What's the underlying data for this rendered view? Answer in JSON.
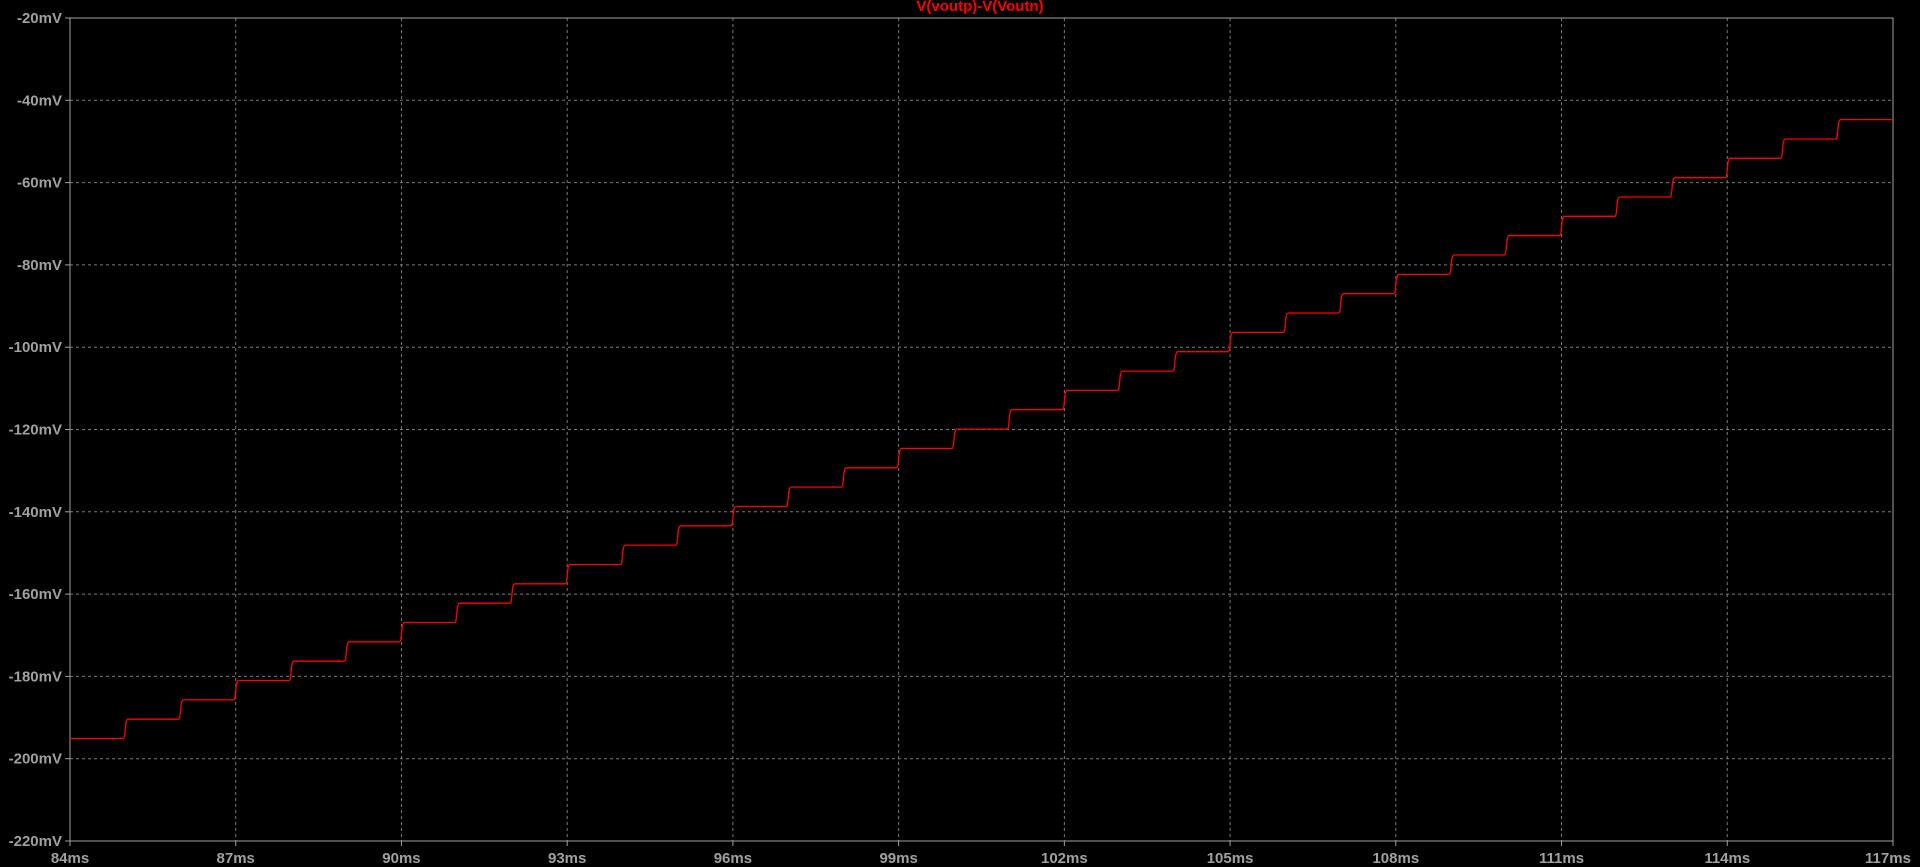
{
  "chart_data": {
    "type": "line",
    "title": "V(voutp)-V(Voutn)",
    "xlabel": "",
    "ylabel": "",
    "grid": true,
    "xlim": [
      84,
      117
    ],
    "ylim": [
      -220,
      -20
    ],
    "x_ticks": [
      "84ms",
      "87ms",
      "90ms",
      "93ms",
      "96ms",
      "99ms",
      "102ms",
      "105ms",
      "108ms",
      "111ms",
      "114ms",
      "117ms"
    ],
    "x_tick_values": [
      84,
      87,
      90,
      93,
      96,
      99,
      102,
      105,
      108,
      111,
      114,
      117
    ],
    "y_ticks": [
      "-20mV",
      "-40mV",
      "-60mV",
      "-80mV",
      "-100mV",
      "-120mV",
      "-140mV",
      "-160mV",
      "-180mV",
      "-200mV",
      "-220mV"
    ],
    "y_tick_values": [
      -20,
      -40,
      -60,
      -80,
      -100,
      -120,
      -140,
      -160,
      -180,
      -200,
      -220
    ],
    "x_unit": "ms",
    "y_unit": "mV",
    "series": [
      {
        "name": "V(voutp)-V(Voutn)",
        "color": "#ff0000",
        "step_times": [
          85,
          86,
          87,
          88,
          89,
          90,
          91,
          92,
          93,
          94,
          95,
          96,
          97,
          98,
          99,
          100,
          101,
          102,
          103,
          104,
          105,
          106,
          107,
          108,
          109,
          110,
          111,
          112,
          113,
          114,
          115,
          116
        ],
        "levels": [
          -195.1,
          -190.4,
          -185.7,
          -181.0,
          -176.3,
          -171.6,
          -166.9,
          -162.2,
          -157.5,
          -152.8,
          -148.1,
          -143.4,
          -138.7,
          -134.0,
          -129.3,
          -124.6,
          -119.9,
          -115.2,
          -110.5,
          -105.8,
          -101.1,
          -96.4,
          -91.7,
          -87.0,
          -82.3,
          -77.6,
          -72.9,
          -68.2,
          -63.5,
          -58.8,
          -54.1,
          -49.4,
          -44.7
        ]
      }
    ]
  },
  "style": {
    "background": "#000000",
    "axis_color": "#a0a0a0",
    "grid_color": "#7a7a7a",
    "tick_label_color": "#a0a0a0",
    "title_color": "#ff0000"
  }
}
